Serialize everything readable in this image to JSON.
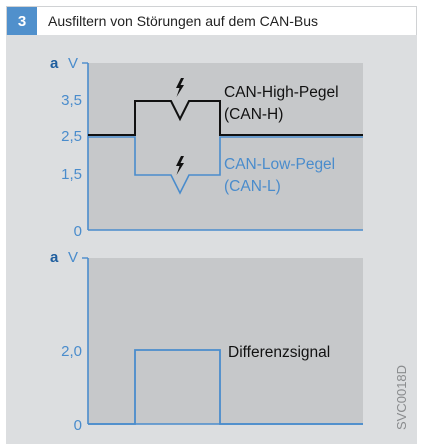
{
  "header": {
    "number": "3",
    "title": "Ausfiltern von Störungen auf dem CAN-Bus"
  },
  "top_chart": {
    "axis_letter": "a",
    "unit": "V",
    "ticks": [
      "3,5",
      "2,5",
      "1,5",
      "0"
    ],
    "label_high_1": "CAN-High-Pegel",
    "label_high_2": "(CAN-H)",
    "label_low_1": "CAN-Low-Pegel",
    "label_low_2": "(CAN-L)",
    "interference_symbol": "lightning-bolt-icon"
  },
  "bottom_chart": {
    "axis_letter": "a",
    "unit": "V",
    "ticks": [
      "2,0",
      "0"
    ],
    "label": "Differenzsignal"
  },
  "figure_code": "SVC0018D",
  "colors": {
    "header_box": "#5090cc",
    "panel_bg": "#dcdee0",
    "plot_bg": "#c6c8ca",
    "can_high": "#111111",
    "can_low": "#4a8ccc",
    "label_blue": "#4a8ccc",
    "axis_letter": "#1f5e9e"
  }
}
